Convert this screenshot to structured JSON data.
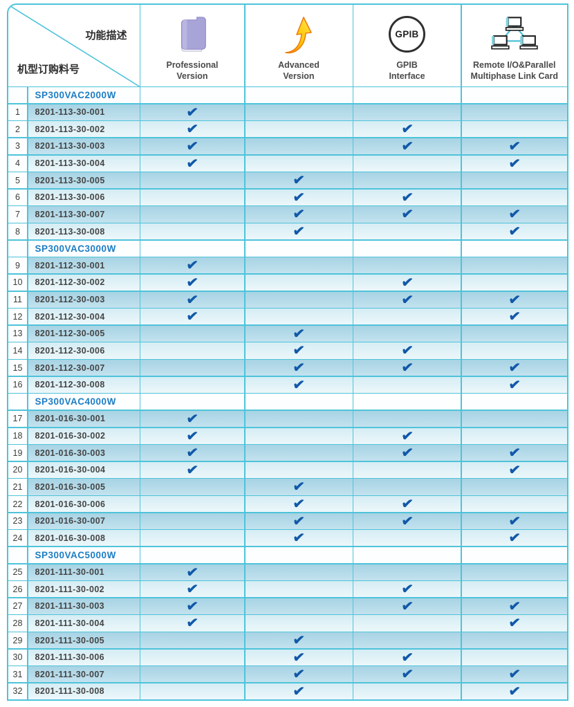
{
  "header": {
    "corner": {
      "top_right": "功能描述",
      "bottom_left": "机型订购料号"
    },
    "columns": [
      {
        "label": "Professional\nVersion",
        "icon": "book-icon"
      },
      {
        "label": "Advanced\nVersion",
        "icon": "up-arrow-icon"
      },
      {
        "label": "GPIB\nInterface",
        "icon": "gpib-circle-icon",
        "icon_text": "GPIB"
      },
      {
        "label": "Remote I/O&Parallel\nMultiphase Link Card",
        "icon": "network-computers-icon"
      }
    ]
  },
  "check_mark": "✔",
  "colors": {
    "grid_border": "#4ec3da",
    "row_dark": "#abd6e6",
    "row_light": "#d8eef5",
    "section_title_blue": "#1d7dc4",
    "checkmark_blue": "#1158a8",
    "book_purple": "#a9a4d8",
    "arrow_yellow": "#ffc800",
    "arrow_orange": "#ee7d12",
    "network_cyan": "#45bdd3"
  },
  "feature_keys": [
    "professional_version",
    "advanced_version",
    "gpib_interface",
    "remote_io_parallel_link_card"
  ],
  "sections": [
    {
      "model": "SP300VAC2000W",
      "rows": [
        {
          "no": 1,
          "part": "8201-113-30-001",
          "features": [
            1,
            0,
            0,
            0
          ]
        },
        {
          "no": 2,
          "part": "8201-113-30-002",
          "features": [
            1,
            0,
            1,
            0
          ]
        },
        {
          "no": 3,
          "part": "8201-113-30-003",
          "features": [
            1,
            0,
            1,
            1
          ]
        },
        {
          "no": 4,
          "part": "8201-113-30-004",
          "features": [
            1,
            0,
            0,
            1
          ]
        },
        {
          "no": 5,
          "part": "8201-113-30-005",
          "features": [
            0,
            1,
            0,
            0
          ]
        },
        {
          "no": 6,
          "part": "8201-113-30-006",
          "features": [
            0,
            1,
            1,
            0
          ]
        },
        {
          "no": 7,
          "part": "8201-113-30-007",
          "features": [
            0,
            1,
            1,
            1
          ]
        },
        {
          "no": 8,
          "part": "8201-113-30-008",
          "features": [
            0,
            1,
            0,
            1
          ]
        }
      ]
    },
    {
      "model": "SP300VAC3000W",
      "rows": [
        {
          "no": 9,
          "part": "8201-112-30-001",
          "features": [
            1,
            0,
            0,
            0
          ]
        },
        {
          "no": 10,
          "part": "8201-112-30-002",
          "features": [
            1,
            0,
            1,
            0
          ]
        },
        {
          "no": 11,
          "part": "8201-112-30-003",
          "features": [
            1,
            0,
            1,
            1
          ]
        },
        {
          "no": 12,
          "part": "8201-112-30-004",
          "features": [
            1,
            0,
            0,
            1
          ]
        },
        {
          "no": 13,
          "part": "8201-112-30-005",
          "features": [
            0,
            1,
            0,
            0
          ]
        },
        {
          "no": 14,
          "part": "8201-112-30-006",
          "features": [
            0,
            1,
            1,
            0
          ]
        },
        {
          "no": 15,
          "part": "8201-112-30-007",
          "features": [
            0,
            1,
            1,
            1
          ]
        },
        {
          "no": 16,
          "part": "8201-112-30-008",
          "features": [
            0,
            1,
            0,
            1
          ]
        }
      ]
    },
    {
      "model": "SP300VAC4000W",
      "rows": [
        {
          "no": 17,
          "part": "8201-016-30-001",
          "features": [
            1,
            0,
            0,
            0
          ]
        },
        {
          "no": 18,
          "part": "8201-016-30-002",
          "features": [
            1,
            0,
            1,
            0
          ]
        },
        {
          "no": 19,
          "part": "8201-016-30-003",
          "features": [
            1,
            0,
            1,
            1
          ]
        },
        {
          "no": 20,
          "part": "8201-016-30-004",
          "features": [
            1,
            0,
            0,
            1
          ]
        },
        {
          "no": 21,
          "part": "8201-016-30-005",
          "features": [
            0,
            1,
            0,
            0
          ]
        },
        {
          "no": 22,
          "part": "8201-016-30-006",
          "features": [
            0,
            1,
            1,
            0
          ]
        },
        {
          "no": 23,
          "part": "8201-016-30-007",
          "features": [
            0,
            1,
            1,
            1
          ]
        },
        {
          "no": 24,
          "part": "8201-016-30-008",
          "features": [
            0,
            1,
            0,
            1
          ]
        }
      ]
    },
    {
      "model": "SP300VAC5000W",
      "rows": [
        {
          "no": 25,
          "part": "8201-111-30-001",
          "features": [
            1,
            0,
            0,
            0
          ]
        },
        {
          "no": 26,
          "part": "8201-111-30-002",
          "features": [
            1,
            0,
            1,
            0
          ]
        },
        {
          "no": 27,
          "part": "8201-111-30-003",
          "features": [
            1,
            0,
            1,
            1
          ]
        },
        {
          "no": 28,
          "part": "8201-111-30-004",
          "features": [
            1,
            0,
            0,
            1
          ]
        },
        {
          "no": 29,
          "part": "8201-111-30-005",
          "features": [
            0,
            1,
            0,
            0
          ]
        },
        {
          "no": 30,
          "part": "8201-111-30-006",
          "features": [
            0,
            1,
            1,
            0
          ]
        },
        {
          "no": 31,
          "part": "8201-111-30-007",
          "features": [
            0,
            1,
            1,
            1
          ]
        },
        {
          "no": 32,
          "part": "8201-111-30-008",
          "features": [
            0,
            1,
            0,
            1
          ]
        }
      ]
    }
  ]
}
